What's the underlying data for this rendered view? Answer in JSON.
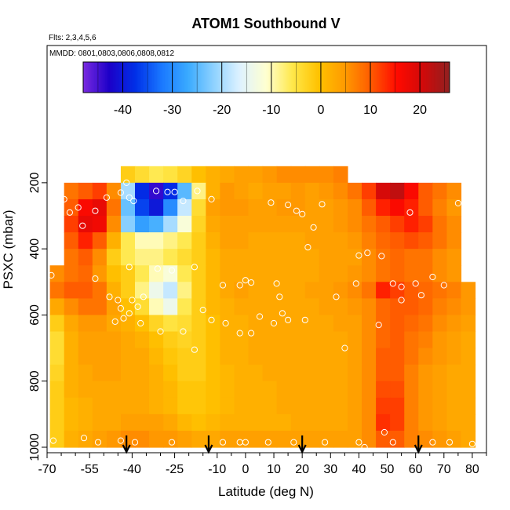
{
  "chart_data": {
    "type": "heatmap",
    "title": "ATOM1 Southbound V",
    "flights_note": "Flts: 2,3,4,5,6",
    "dates_note": "MMDD: 0801,0803,0806,0808,0812",
    "xlabel": "Latitude (deg N)",
    "ylabel": "PSXC (mbar)",
    "xlim": [
      -70,
      85
    ],
    "ylim": [
      1000,
      0
    ],
    "x_ticks": [
      -70,
      -55,
      -40,
      -25,
      -10,
      0,
      10,
      20,
      30,
      40,
      50,
      60,
      70,
      80
    ],
    "y_ticks": [
      200,
      400,
      600,
      800,
      1000
    ],
    "colorbar": {
      "range": [
        -48,
        26
      ],
      "ticks": [
        -40,
        -30,
        -20,
        -10,
        0,
        10,
        20
      ],
      "colors": [
        "#7a2be0",
        "#1c00c8",
        "#0030e8",
        "#1a78ff",
        "#3aaaff",
        "#8fd2ff",
        "#dff2ff",
        "#ffffd0",
        "#ffe84a",
        "#ffc200",
        "#ff9a00",
        "#ff5a00",
        "#ff0a00",
        "#d00a0a",
        "#902020"
      ]
    },
    "grid_lat": [
      -66.5,
      -61.5,
      -56.5,
      -51.5,
      -46.5,
      -41.5,
      -36.5,
      -31.5,
      -26.5,
      -21.5,
      -16.5,
      -11.5,
      -6.5,
      -1.5,
      3.5,
      8.5,
      13.5,
      18.5,
      23.5,
      28.5,
      33.5,
      38.5,
      43.5,
      48.5,
      53.5,
      58.5,
      63.5,
      68.5,
      73.5,
      78.5
    ],
    "grid_p": [
      175,
      225,
      275,
      325,
      375,
      425,
      475,
      525,
      575,
      625,
      675,
      725,
      775,
      825,
      875,
      925,
      975
    ],
    "grid_v": [
      [
        null,
        null,
        null,
        null,
        null,
        -2,
        -4,
        -6,
        -5,
        -3,
        0,
        2,
        3,
        4,
        4,
        5,
        6,
        6,
        6,
        6,
        7,
        null,
        null,
        null,
        null,
        null,
        null,
        null,
        null,
        null
      ],
      [
        null,
        8,
        10,
        12,
        6,
        -20,
        -38,
        -44,
        -38,
        -25,
        -8,
        2,
        5,
        4,
        3,
        4,
        4,
        5,
        4,
        5,
        6,
        8,
        12,
        20,
        22,
        16,
        10,
        8,
        6,
        null
      ],
      [
        null,
        10,
        16,
        18,
        8,
        -24,
        -36,
        -40,
        -30,
        -18,
        -4,
        4,
        5,
        5,
        4,
        4,
        5,
        5,
        4,
        4,
        5,
        6,
        10,
        14,
        16,
        14,
        10,
        7,
        5,
        null
      ],
      [
        null,
        12,
        18,
        17,
        6,
        -22,
        -28,
        -26,
        -20,
        -12,
        -3,
        3,
        4,
        4,
        4,
        4,
        4,
        4,
        4,
        4,
        5,
        6,
        8,
        10,
        12,
        14,
        12,
        8,
        6,
        null
      ],
      [
        null,
        10,
        14,
        10,
        2,
        -6,
        -10,
        -10,
        -8,
        -6,
        -2,
        2,
        4,
        4,
        3,
        3,
        3,
        3,
        4,
        4,
        4,
        5,
        7,
        9,
        10,
        11,
        10,
        8,
        6,
        null
      ],
      [
        null,
        8,
        10,
        6,
        -2,
        -6,
        -8,
        -8,
        -6,
        -4,
        -2,
        1,
        3,
        3,
        3,
        3,
        3,
        3,
        3,
        4,
        4,
        4,
        6,
        8,
        9,
        8,
        8,
        6,
        5,
        null
      ],
      [
        6,
        8,
        9,
        5,
        0,
        -2,
        -6,
        -10,
        -12,
        -6,
        -2,
        1,
        3,
        3,
        3,
        3,
        3,
        3,
        3,
        4,
        4,
        5,
        6,
        8,
        9,
        8,
        8,
        6,
        5,
        null
      ],
      [
        8,
        10,
        10,
        8,
        2,
        -2,
        -8,
        -14,
        -18,
        -8,
        -2,
        1,
        3,
        4,
        3,
        3,
        3,
        3,
        4,
        4,
        5,
        6,
        8,
        14,
        12,
        10,
        9,
        8,
        7,
        5
      ],
      [
        3,
        6,
        8,
        8,
        4,
        0,
        -4,
        -10,
        -14,
        -6,
        -2,
        1,
        2,
        3,
        3,
        3,
        3,
        3,
        3,
        4,
        4,
        5,
        6,
        9,
        10,
        10,
        9,
        7,
        6,
        5
      ],
      [
        -2,
        3,
        5,
        5,
        3,
        2,
        0,
        -3,
        -5,
        -4,
        -2,
        0,
        2,
        2,
        3,
        3,
        3,
        3,
        3,
        3,
        4,
        4,
        6,
        9,
        10,
        9,
        8,
        6,
        5,
        4
      ],
      [
        -4,
        2,
        4,
        4,
        4,
        3,
        2,
        0,
        -2,
        -3,
        -2,
        0,
        2,
        2,
        3,
        3,
        3,
        3,
        3,
        3,
        3,
        4,
        6,
        9,
        10,
        8,
        7,
        5,
        4,
        3
      ],
      [
        -4,
        2,
        4,
        4,
        4,
        3,
        3,
        1,
        -1,
        -2,
        -2,
        0,
        2,
        2,
        3,
        3,
        3,
        3,
        3,
        3,
        3,
        4,
        6,
        10,
        10,
        8,
        6,
        5,
        4,
        3
      ],
      [
        -3,
        2,
        3,
        4,
        4,
        3,
        3,
        2,
        0,
        -2,
        -2,
        0,
        1,
        2,
        2,
        3,
        3,
        3,
        3,
        3,
        3,
        4,
        6,
        10,
        10,
        7,
        5,
        4,
        3,
        3
      ],
      [
        -2,
        2,
        3,
        3,
        3,
        3,
        3,
        2,
        1,
        -1,
        -1,
        0,
        1,
        2,
        2,
        2,
        3,
        3,
        3,
        3,
        3,
        4,
        6,
        11,
        11,
        7,
        5,
        4,
        3,
        3
      ],
      [
        -2,
        1,
        2,
        3,
        3,
        3,
        3,
        2,
        1,
        -1,
        -1,
        0,
        1,
        2,
        2,
        2,
        3,
        3,
        3,
        3,
        3,
        4,
        6,
        12,
        12,
        7,
        5,
        4,
        3,
        3
      ],
      [
        -2,
        1,
        2,
        3,
        3,
        4,
        4,
        4,
        3,
        1,
        0,
        1,
        2,
        2,
        2,
        2,
        2,
        3,
        3,
        3,
        3,
        4,
        6,
        13,
        12,
        7,
        5,
        4,
        3,
        3
      ],
      [
        -2,
        2,
        3,
        4,
        5,
        6,
        6,
        5,
        5,
        4,
        3,
        3,
        4,
        4,
        4,
        4,
        4,
        4,
        4,
        4,
        4,
        4,
        6,
        10,
        10,
        7,
        6,
        5,
        4,
        3
      ]
    ],
    "flight_points": [
      [
        -68.5,
        480
      ],
      [
        -67.8,
        980
      ],
      [
        -64,
        250
      ],
      [
        -62,
        290
      ],
      [
        -59,
        275
      ],
      [
        -57.5,
        330
      ],
      [
        -53,
        285
      ],
      [
        -49,
        245
      ],
      [
        -44,
        230
      ],
      [
        -42,
        200
      ],
      [
        -41,
        245
      ],
      [
        -39.5,
        255
      ],
      [
        -31.5,
        225
      ],
      [
        -27.5,
        228
      ],
      [
        -25,
        228
      ],
      [
        -22,
        255
      ],
      [
        -17,
        225
      ],
      [
        -53,
        490
      ],
      [
        -48,
        545
      ],
      [
        -45,
        555
      ],
      [
        -44,
        580
      ],
      [
        -41,
        455
      ],
      [
        -40,
        555
      ],
      [
        -38,
        575
      ],
      [
        -36,
        545
      ],
      [
        -31,
        460
      ],
      [
        -26,
        465
      ],
      [
        -18,
        455
      ],
      [
        -15,
        585
      ],
      [
        -12,
        250
      ],
      [
        -8,
        510
      ],
      [
        -2,
        510
      ],
      [
        0,
        495
      ],
      [
        2,
        502
      ],
      [
        5,
        605
      ],
      [
        9,
        260
      ],
      [
        11,
        505
      ],
      [
        12,
        545
      ],
      [
        15,
        267
      ],
      [
        18,
        285
      ],
      [
        20,
        295
      ],
      [
        22,
        395
      ],
      [
        24,
        335
      ],
      [
        27,
        265
      ],
      [
        32,
        545
      ],
      [
        39,
        505
      ],
      [
        43,
        412
      ],
      [
        48,
        422
      ],
      [
        52,
        505
      ],
      [
        55,
        515
      ],
      [
        58,
        290
      ],
      [
        60,
        505
      ],
      [
        62,
        540
      ],
      [
        66,
        485
      ],
      [
        70,
        510
      ],
      [
        75,
        262
      ],
      [
        81,
        425
      ],
      [
        -46,
        620
      ],
      [
        -43,
        610
      ],
      [
        -41,
        595
      ],
      [
        -37,
        625
      ],
      [
        -30,
        650
      ],
      [
        -22,
        650
      ],
      [
        -18,
        705
      ],
      [
        -12,
        615
      ],
      [
        -7,
        625
      ],
      [
        -2,
        655
      ],
      [
        2,
        655
      ],
      [
        10,
        625
      ],
      [
        13,
        595
      ],
      [
        15,
        615
      ],
      [
        21,
        615
      ],
      [
        35,
        700
      ],
      [
        40,
        420
      ],
      [
        47,
        630
      ],
      [
        55,
        555
      ],
      [
        -57,
        972
      ],
      [
        -52,
        985
      ],
      [
        -44,
        980
      ],
      [
        -39,
        985
      ],
      [
        -26,
        985
      ],
      [
        -8,
        985
      ],
      [
        -2,
        985
      ],
      [
        0,
        985
      ],
      [
        8,
        985
      ],
      [
        17,
        985
      ],
      [
        28,
        985
      ],
      [
        40,
        985
      ],
      [
        42,
        1000
      ],
      [
        49,
        955
      ],
      [
        52,
        985
      ],
      [
        66,
        985
      ],
      [
        72,
        985
      ],
      [
        80,
        990
      ]
    ],
    "arrows_lat": [
      -42,
      -13,
      20,
      61
    ]
  }
}
